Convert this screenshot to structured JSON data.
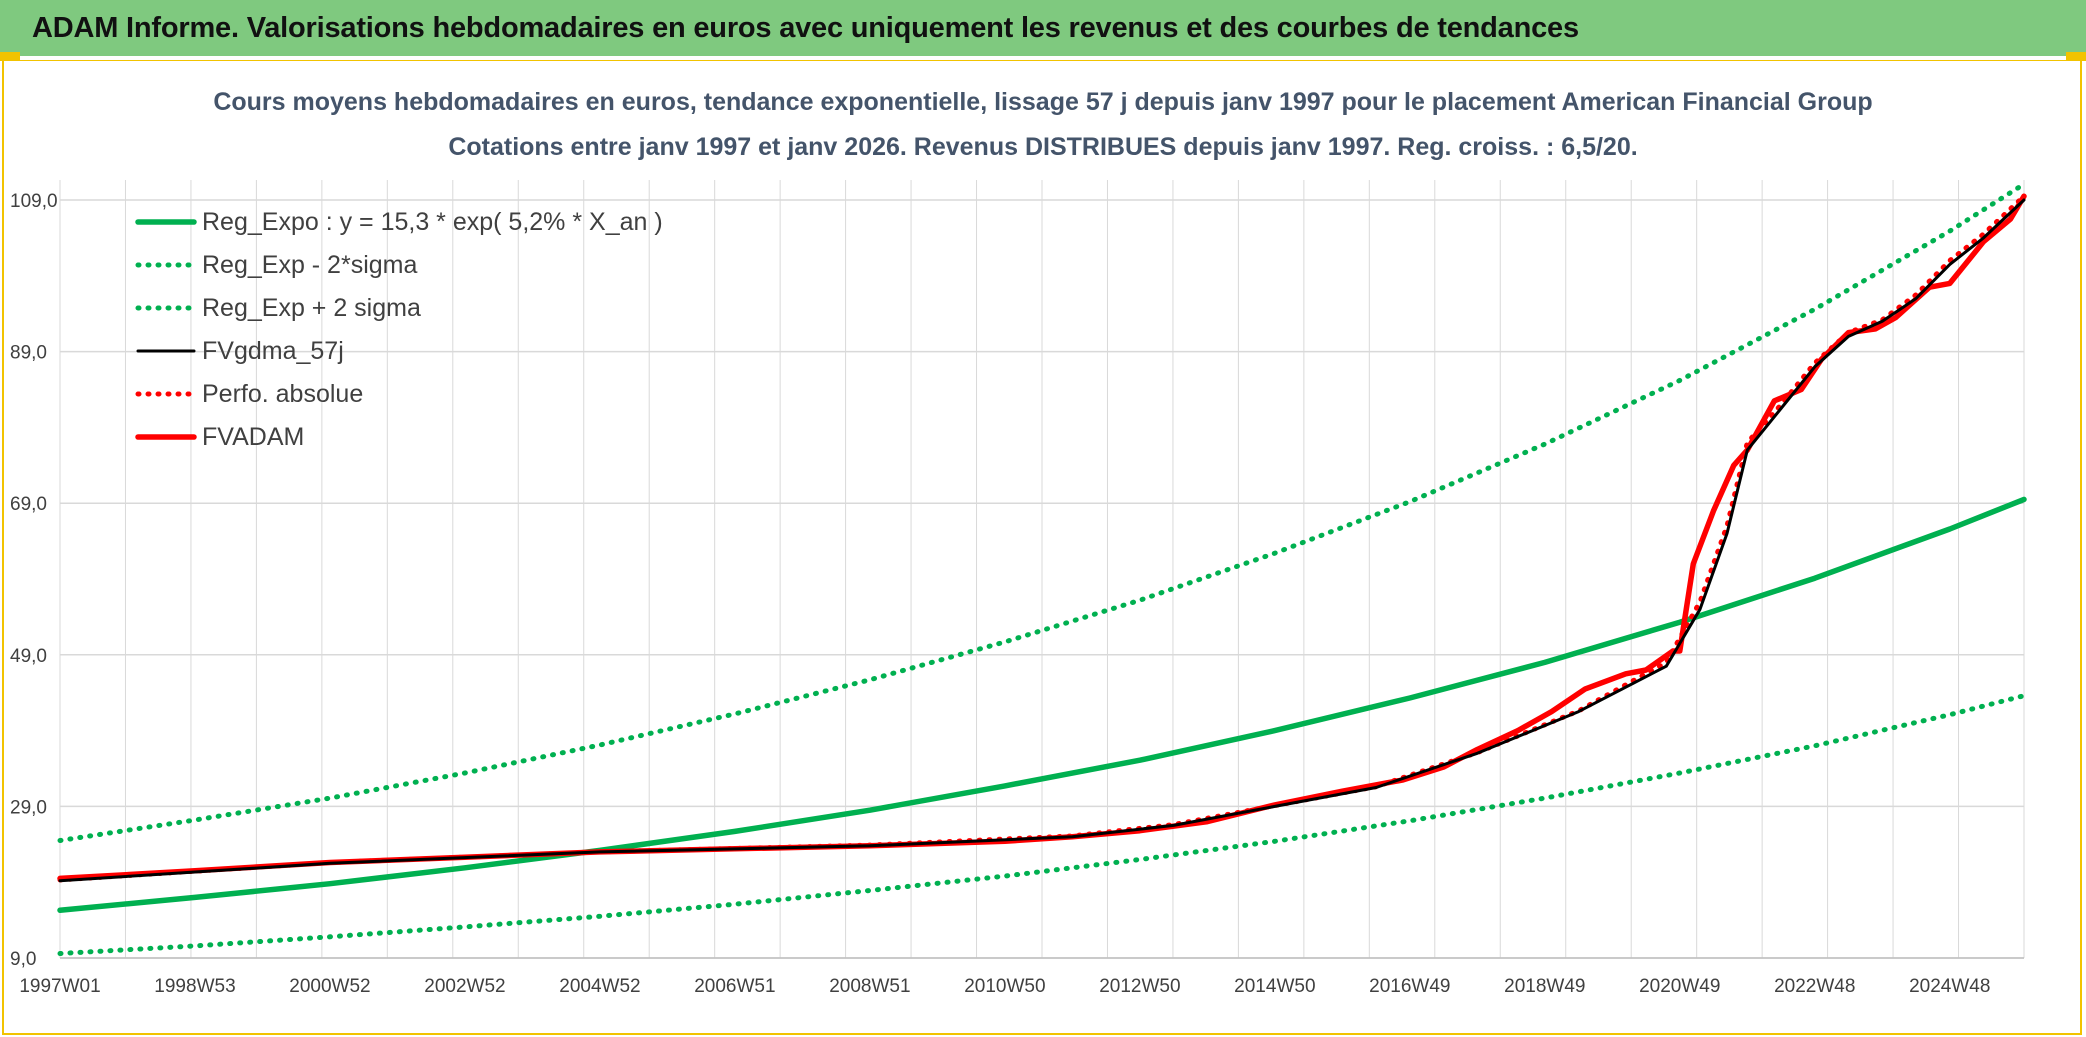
{
  "header": {
    "title": "ADAM Informe. Valorisations hebdomadaires en euros avec uniquement les revenus et des courbes de tendances"
  },
  "colors": {
    "header_bg": "#7fc97f",
    "frame": "#f2c300",
    "reg_expo": "#00b050",
    "fvgdma": "#000000",
    "fvadam": "#ff0000",
    "grid": "#d9d9d9"
  },
  "chart_data": {
    "type": "line",
    "title": "Cours moyens hebdomadaires en euros, tendance exponentielle, lissage 57 j depuis janv 1997 pour le placement American Financial Group",
    "subtitle": "Cotations entre janv 1997 et janv 2026. Revenus DISTRIBUES depuis janv 1997. Reg. croiss. : 6,5/20.",
    "xlabel": "",
    "ylabel": "",
    "x_range": [
      1997.0,
      2026.1
    ],
    "ylim": [
      9,
      109
    ],
    "yticks": [
      9,
      29,
      49,
      69,
      89,
      109
    ],
    "ytick_labels": [
      "9,0",
      "29,0",
      "49,0",
      "69,0",
      "89,0",
      "109,0"
    ],
    "xtick_labels": [
      "1997W01",
      "1998W53",
      "2000W52",
      "2002W52",
      "2004W52",
      "2006W51",
      "2008W51",
      "2010W50",
      "2012W50",
      "2014W50",
      "2016W49",
      "2018W49",
      "2020W49",
      "2022W48",
      "2024W48"
    ],
    "xtick_values": [
      1997.0,
      1999.0,
      2001.0,
      2003.0,
      2005.0,
      2007.0,
      2009.0,
      2011.0,
      2013.0,
      2015.0,
      2017.0,
      2019.0,
      2021.0,
      2023.0,
      2025.0
    ],
    "legend_position": "top-left",
    "series": [
      {
        "name": "Reg_Expo : y = 15,3 * exp( 5,2% *  X_an )",
        "style": "solid-thick",
        "color": "#00b050",
        "x": [
          1997.0,
          1999.0,
          2001.0,
          2003.0,
          2005.0,
          2007.0,
          2009.0,
          2011.0,
          2013.0,
          2015.0,
          2017.0,
          2019.0,
          2021.0,
          2023.0,
          2025.0,
          2026.1
        ],
        "y": [
          15.3,
          17.0,
          18.8,
          20.9,
          23.2,
          25.7,
          28.5,
          31.7,
          35.1,
          39.0,
          43.3,
          48.0,
          53.3,
          59.1,
          65.6,
          69.5
        ]
      },
      {
        "name": "Reg_Exp - 2*sigma",
        "style": "dotted",
        "color": "#00b050",
        "x": [
          1997.0,
          1999.0,
          2001.0,
          2003.0,
          2005.0,
          2007.0,
          2009.0,
          2011.0,
          2013.0,
          2015.0,
          2017.0,
          2019.0,
          2021.0,
          2023.0,
          2025.0,
          2026.1
        ],
        "y": [
          9.6,
          10.6,
          11.8,
          13.1,
          14.5,
          16.1,
          17.9,
          19.8,
          22.0,
          24.4,
          27.1,
          30.1,
          33.4,
          37.0,
          41.1,
          43.6
        ]
      },
      {
        "name": "Reg_Exp + 2 sigma",
        "style": "dotted",
        "color": "#00b050",
        "x": [
          1997.0,
          1999.0,
          2001.0,
          2003.0,
          2005.0,
          2007.0,
          2009.0,
          2011.0,
          2013.0,
          2015.0,
          2017.0,
          2019.0,
          2021.0,
          2023.0,
          2025.0,
          2026.1
        ],
        "y": [
          24.5,
          27.2,
          30.1,
          33.4,
          37.1,
          41.2,
          45.7,
          50.7,
          56.2,
          62.4,
          69.2,
          76.8,
          85.2,
          94.6,
          104.9,
          111.1
        ]
      },
      {
        "name": "FVgdma_57j",
        "style": "solid",
        "color": "#000000",
        "x": [
          1997.0,
          2001.0,
          2005.0,
          2009.0,
          2012.0,
          2013.5,
          2015.0,
          2016.5,
          2018.0,
          2019.5,
          2020.8,
          2021.3,
          2021.7,
          2022.0,
          2022.5,
          2023.0,
          2023.5,
          2024.0,
          2024.5,
          2025.0,
          2025.5,
          2026.1
        ],
        "y": [
          19.2,
          21.5,
          23.0,
          23.8,
          25.0,
          26.5,
          29.0,
          31.5,
          36.0,
          41.5,
          47.5,
          55.0,
          65.0,
          76.0,
          81.5,
          87.0,
          91.0,
          93.0,
          96.0,
          100.5,
          104.0,
          109.0
        ]
      },
      {
        "name": "Perfo. absolue",
        "style": "dotted",
        "color": "#ff0000",
        "x": [
          1997.0,
          2001.0,
          2005.0,
          2009.0,
          2012.0,
          2013.5,
          2015.0,
          2016.5,
          2018.0,
          2019.5,
          2020.8,
          2021.3,
          2021.7,
          2022.0,
          2022.5,
          2023.0,
          2023.5,
          2024.0,
          2024.5,
          2025.0,
          2025.5,
          2026.1
        ],
        "y": [
          19.3,
          21.6,
          23.0,
          23.9,
          25.1,
          26.6,
          29.1,
          31.6,
          36.1,
          41.6,
          48.0,
          56.0,
          66.0,
          77.0,
          82.0,
          87.5,
          91.5,
          93.2,
          96.5,
          101.0,
          104.5,
          109.5
        ]
      },
      {
        "name": "FVADAM",
        "style": "solid-thick",
        "color": "#ff0000",
        "x": [
          1997.0,
          1999.0,
          2001.0,
          2003.0,
          2005.0,
          2007.0,
          2009.0,
          2011.0,
          2012.0,
          2013.0,
          2014.0,
          2015.0,
          2016.0,
          2016.9,
          2017.5,
          2018.0,
          2018.6,
          2019.1,
          2019.6,
          2020.2,
          2020.5,
          2020.9,
          2021.0,
          2021.2,
          2021.5,
          2021.8,
          2022.0,
          2022.4,
          2022.8,
          2023.1,
          2023.5,
          2023.9,
          2024.2,
          2024.7,
          2025.0,
          2025.5,
          2025.9,
          2026.1
        ],
        "y": [
          19.5,
          20.5,
          21.6,
          22.3,
          23.0,
          23.4,
          23.8,
          24.4,
          25.0,
          25.8,
          27.0,
          29.2,
          31.0,
          32.5,
          34.2,
          36.5,
          39.0,
          41.5,
          44.5,
          46.5,
          47.0,
          49.5,
          49.5,
          61.0,
          68.0,
          74.0,
          76.0,
          82.5,
          84.0,
          88.0,
          91.5,
          92.0,
          93.5,
          97.5,
          98.0,
          103.5,
          106.5,
          109.5
        ]
      }
    ]
  }
}
